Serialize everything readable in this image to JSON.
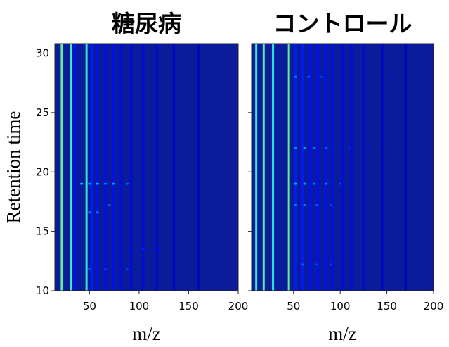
{
  "chart_data": [
    {
      "type": "heatmap",
      "title": "糖尿病",
      "x_label": "m/z",
      "y_label": "Retention time",
      "xlim": [
        15,
        200
      ],
      "ylim": [
        10,
        30.8
      ],
      "xticks": [
        50,
        100,
        150,
        200
      ],
      "yticks": [
        10,
        15,
        20,
        25,
        30
      ],
      "show_ytick_labels": true,
      "background": "#0a1c9a",
      "colormap": [
        "#00008f",
        "#0010ff",
        "#00e5ff",
        "#fff200"
      ],
      "clim": [
        0,
        1
      ],
      "columns": {
        "x": [
          22,
          31,
          35,
          47,
          52,
          58,
          66,
          74,
          82,
          92,
          104,
          118,
          135,
          160
        ],
        "values": [
          0.8,
          0.75,
          0.3,
          0.72,
          0.35,
          0.3,
          0.28,
          0.3,
          0.25,
          0.22,
          0.2,
          0.18,
          0.15,
          0.12
        ]
      },
      "spots": {
        "x": [
          42,
          50,
          58,
          66,
          74,
          88,
          50,
          58,
          70,
          50,
          66,
          88,
          104,
          120
        ],
        "y": [
          19,
          19,
          19,
          19,
          19,
          19,
          16.6,
          16.6,
          17.2,
          11.8,
          11.8,
          11.8,
          13.5,
          13.5
        ],
        "values": [
          0.6,
          0.55,
          0.6,
          0.5,
          0.55,
          0.45,
          0.5,
          0.5,
          0.45,
          0.45,
          0.4,
          0.4,
          0.35,
          0.3
        ]
      }
    },
    {
      "type": "heatmap",
      "title": "コントロール",
      "x_label": "m/z",
      "xlim": [
        5,
        200
      ],
      "ylim": [
        10,
        30.8
      ],
      "xticks": [
        50,
        100,
        150,
        200
      ],
      "yticks": [
        10,
        15,
        20,
        25,
        30
      ],
      "show_ytick_labels": false,
      "background": "#0a1c9a",
      "colormap": [
        "#00008f",
        "#0010ff",
        "#00e5ff",
        "#fff200"
      ],
      "clim": [
        0,
        1
      ],
      "columns": {
        "x": [
          10,
          18,
          28,
          45,
          52,
          60,
          68,
          76,
          84,
          92,
          102,
          112,
          125,
          145,
          170
        ],
        "values": [
          0.75,
          0.78,
          0.72,
          0.8,
          0.35,
          0.35,
          0.32,
          0.3,
          0.32,
          0.28,
          0.25,
          0.22,
          0.18,
          0.15,
          0.12
        ]
      },
      "spots": {
        "x": [
          52,
          62,
          72,
          85,
          100,
          52,
          62,
          72,
          85,
          110,
          52,
          62,
          75,
          90,
          52,
          66,
          80,
          60,
          75,
          90,
          130,
          155
        ],
        "y": [
          19,
          19,
          19,
          19,
          19,
          22,
          22,
          22,
          22,
          22,
          17.2,
          17.2,
          17.2,
          17.2,
          28,
          28,
          28,
          12.2,
          12.2,
          12.2,
          22,
          28
        ],
        "values": [
          0.6,
          0.55,
          0.5,
          0.5,
          0.4,
          0.55,
          0.55,
          0.5,
          0.45,
          0.35,
          0.5,
          0.5,
          0.45,
          0.4,
          0.5,
          0.45,
          0.4,
          0.45,
          0.4,
          0.4,
          0.3,
          0.3
        ]
      }
    }
  ]
}
